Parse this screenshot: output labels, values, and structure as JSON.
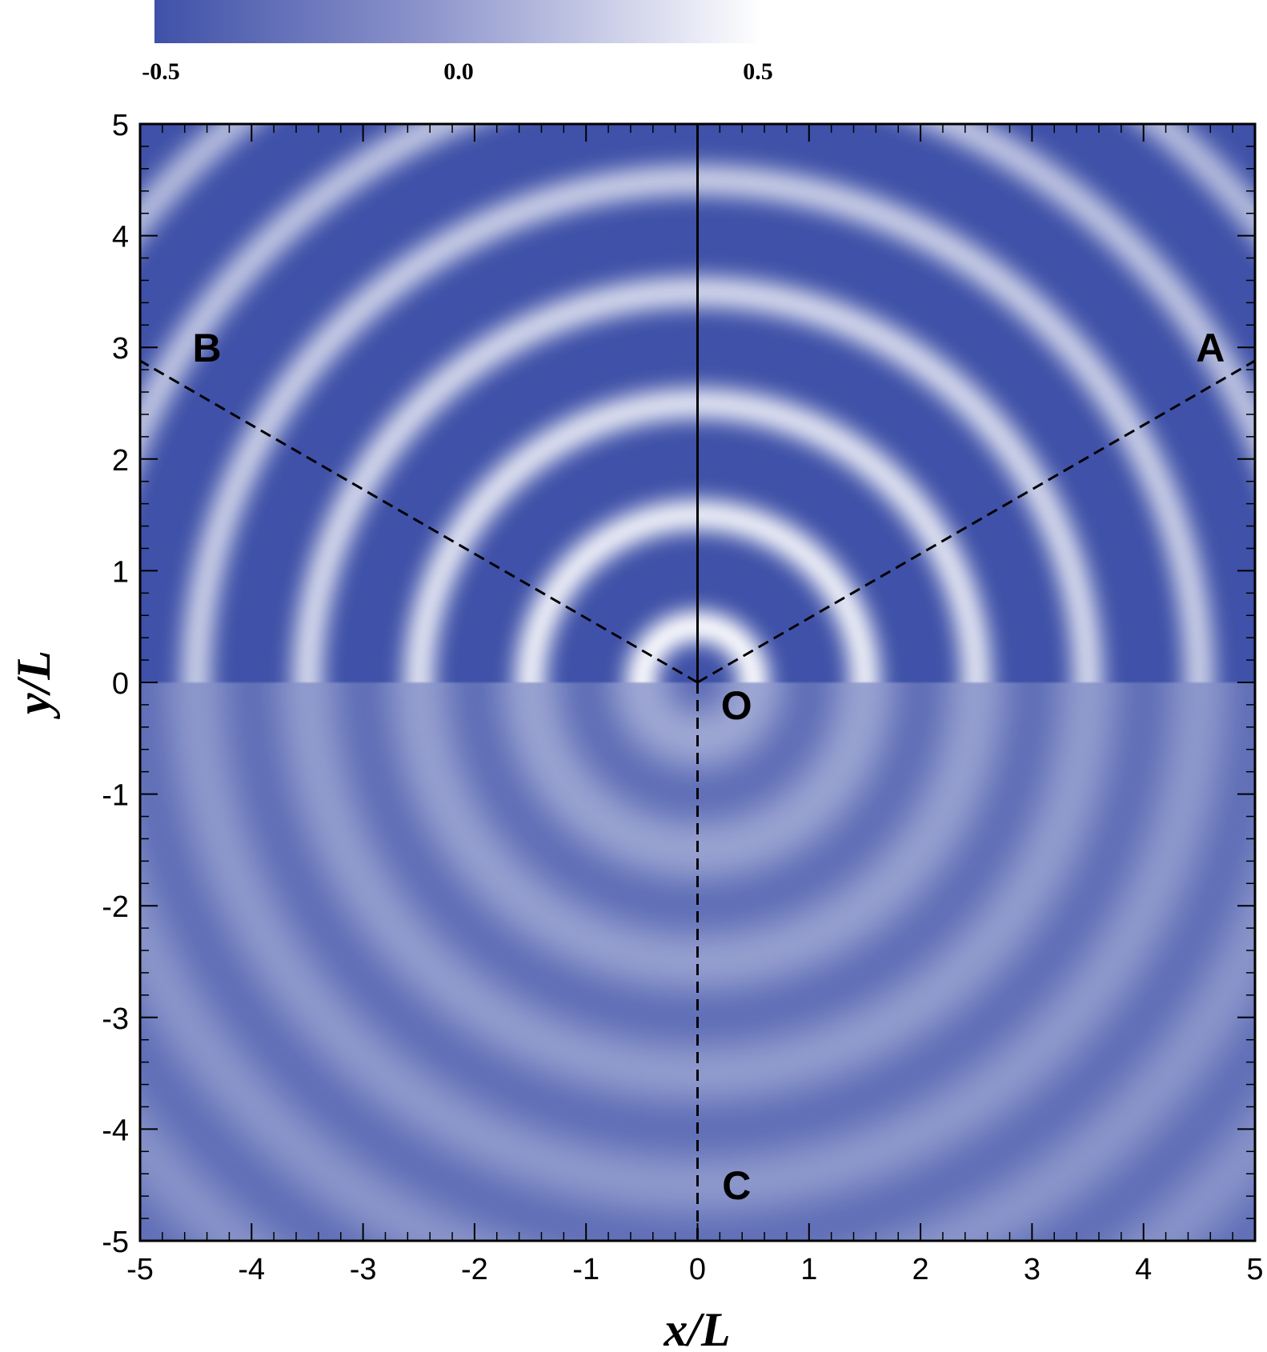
{
  "chart_data": {
    "type": "heatmap",
    "title": "",
    "xlabel": "x/L",
    "ylabel": "y/L",
    "xlim": [
      -5,
      5
    ],
    "ylim": [
      -5,
      5
    ],
    "x_ticks": [
      -5,
      -4,
      -3,
      -2,
      -1,
      0,
      1,
      2,
      3,
      4,
      5
    ],
    "y_ticks": [
      -5,
      -4,
      -3,
      -2,
      -1,
      0,
      1,
      2,
      3,
      4,
      5
    ],
    "x_tick_labels": [
      "-5",
      "-4",
      "-3",
      "-2",
      "-1",
      "0",
      "1",
      "2",
      "3",
      "4",
      "5"
    ],
    "y_tick_labels": [
      "-5",
      "-4",
      "-3",
      "-2",
      "-1",
      "0",
      "1",
      "2",
      "3",
      "4",
      "5"
    ],
    "colorbar": {
      "min": -0.5,
      "max": 0.5,
      "ticks": [
        "-0.5",
        "0.0",
        "0.5"
      ],
      "color_low": "#3f51a8",
      "color_high": "#ffffff"
    },
    "field": {
      "description": "concentric wave pattern centred at origin, stronger contrast for y > 0",
      "center": [
        0,
        0
      ],
      "ring_spacing": 1.0
    },
    "lines": [
      {
        "name": "OA",
        "style": "dashed",
        "points": [
          [
            0,
            0
          ],
          [
            5,
            2.88
          ]
        ]
      },
      {
        "name": "OB",
        "style": "dashed",
        "points": [
          [
            0,
            0
          ],
          [
            -5,
            2.88
          ]
        ]
      },
      {
        "name": "OC",
        "style": "dashed",
        "points": [
          [
            0,
            0
          ],
          [
            0,
            -5
          ]
        ]
      },
      {
        "name": "upper-axis",
        "style": "solid",
        "points": [
          [
            0,
            0
          ],
          [
            0,
            5
          ]
        ]
      }
    ],
    "annotations": [
      {
        "text": "A",
        "x": 4.6,
        "y": 3.0
      },
      {
        "text": "B",
        "x": -4.4,
        "y": 3.0
      },
      {
        "text": "O",
        "x": 0.35,
        "y": -0.2
      },
      {
        "text": "C",
        "x": 0.35,
        "y": -4.5
      }
    ]
  },
  "colors": {
    "dark": "#3f51a8",
    "light": "#ffffff"
  }
}
